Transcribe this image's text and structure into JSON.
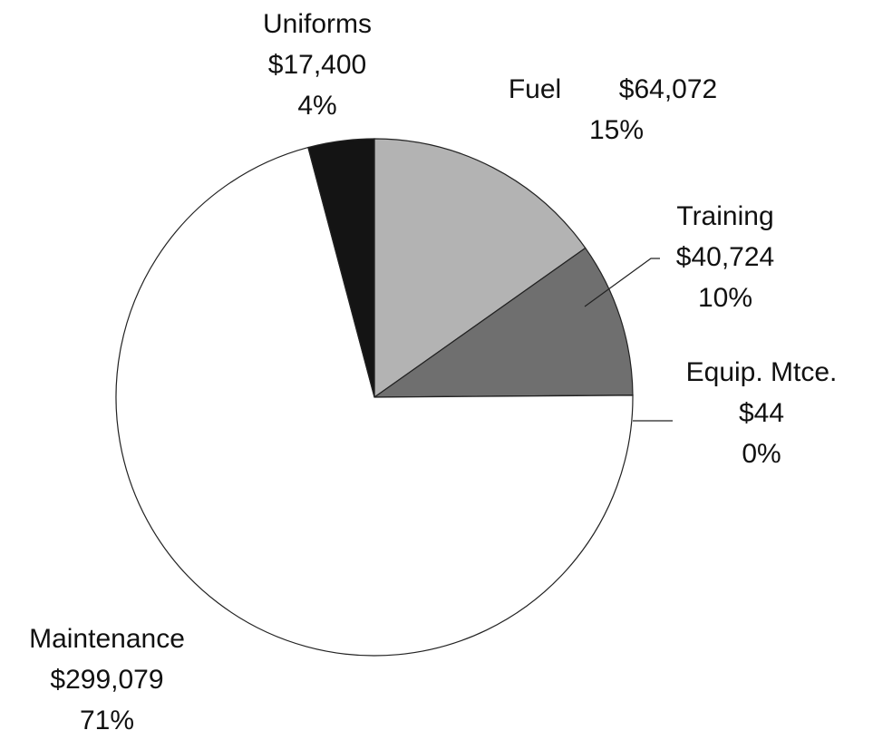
{
  "chart_data": {
    "type": "pie",
    "categories": [
      "Fuel",
      "Training",
      "Equip. Mtce.",
      "Maintenance",
      "Uniforms"
    ],
    "values": [
      64072,
      40724,
      44,
      299079,
      17400
    ],
    "value_labels": [
      "$64,072",
      "$40,724",
      "$44",
      "$299,079",
      "$17,400"
    ],
    "percent_labels": [
      "15%",
      "10%",
      "0%",
      "71%",
      "4%"
    ],
    "colors": [
      "#b3b3b3",
      "#6f6f6f",
      "#8a8a8a",
      "#ffffff",
      "#141414"
    ]
  }
}
